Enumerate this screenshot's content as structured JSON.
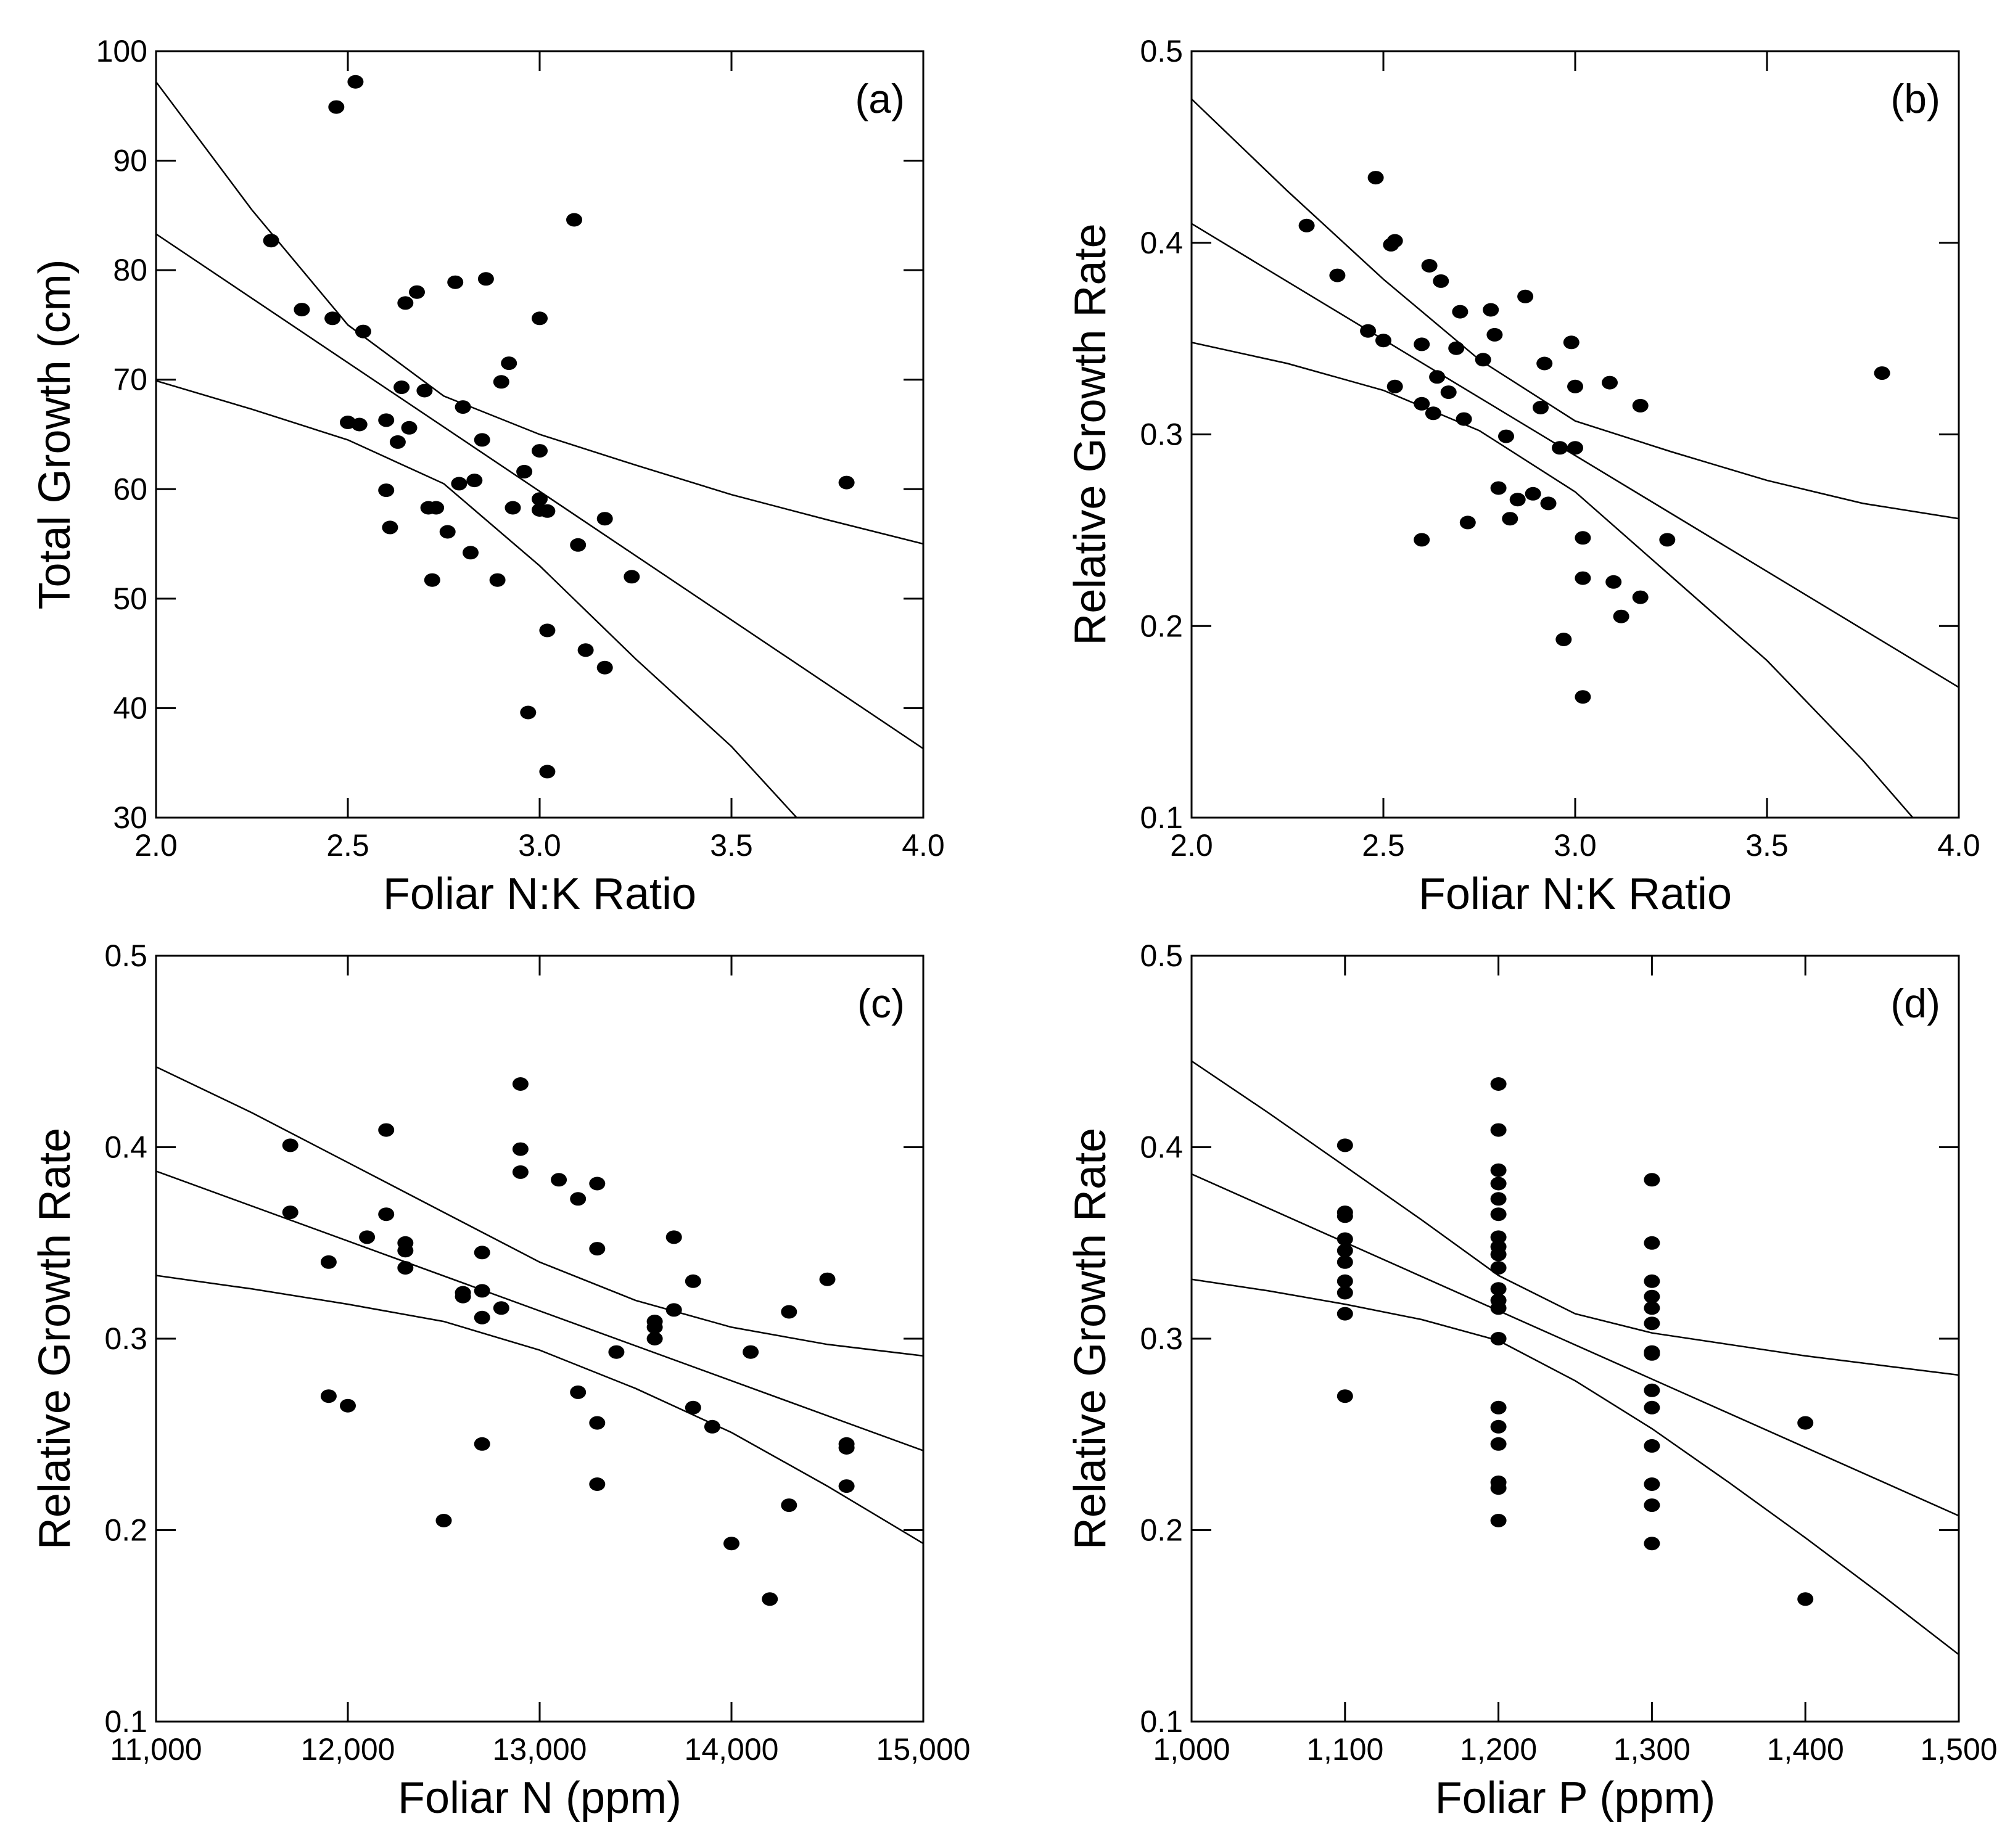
{
  "chart_data": [
    {
      "type": "scatter",
      "panel_tag": "(a)",
      "xlabel": "Foliar N:K Ratio",
      "ylabel": "Total Growth (cm)",
      "xlim": [
        2.0,
        4.0
      ],
      "ylim": [
        30,
        100
      ],
      "xticks": [
        2.0,
        2.5,
        3.0,
        3.5,
        4.0
      ],
      "xtick_labels": [
        "2.0",
        "2.5",
        "3.0",
        "3.5",
        "4.0"
      ],
      "yticks": [
        30,
        40,
        50,
        60,
        70,
        80,
        90,
        100
      ],
      "ytick_labels": [
        "30",
        "40",
        "50",
        "60",
        "70",
        "80",
        "90",
        "100"
      ],
      "points": [
        [
          2.3,
          82.7
        ],
        [
          2.38,
          76.4
        ],
        [
          2.46,
          75.6
        ],
        [
          2.47,
          94.9
        ],
        [
          2.5,
          66.1
        ],
        [
          2.52,
          97.2
        ],
        [
          2.53,
          65.9
        ],
        [
          2.54,
          74.4
        ],
        [
          2.6,
          66.3
        ],
        [
          2.6,
          59.9
        ],
        [
          2.61,
          56.5
        ],
        [
          2.63,
          64.3
        ],
        [
          2.64,
          69.3
        ],
        [
          2.65,
          77.0
        ],
        [
          2.66,
          65.6
        ],
        [
          2.68,
          78.0
        ],
        [
          2.7,
          69.0
        ],
        [
          2.71,
          58.3
        ],
        [
          2.72,
          51.7
        ],
        [
          2.73,
          58.3
        ],
        [
          2.76,
          56.1
        ],
        [
          2.78,
          78.9
        ],
        [
          2.79,
          60.5
        ],
        [
          2.8,
          67.5
        ],
        [
          2.82,
          54.2
        ],
        [
          2.83,
          60.8
        ],
        [
          2.85,
          64.5
        ],
        [
          2.86,
          79.2
        ],
        [
          2.89,
          51.7
        ],
        [
          2.9,
          69.8
        ],
        [
          2.92,
          71.5
        ],
        [
          2.93,
          58.3
        ],
        [
          2.96,
          61.6
        ],
        [
          2.97,
          39.6
        ],
        [
          3.0,
          75.6
        ],
        [
          3.0,
          63.5
        ],
        [
          3.0,
          59.1
        ],
        [
          3.0,
          58.1
        ],
        [
          3.02,
          58.0
        ],
        [
          3.02,
          47.1
        ],
        [
          3.02,
          34.2
        ],
        [
          3.09,
          84.6
        ],
        [
          3.1,
          54.9
        ],
        [
          3.12,
          45.3
        ],
        [
          3.17,
          43.7
        ],
        [
          3.17,
          57.3
        ],
        [
          3.24,
          52.0
        ],
        [
          3.8,
          60.6
        ]
      ],
      "fit_line": {
        "intercept": 130.3,
        "slope": -23.5
      },
      "ci_upper": [
        [
          2.0,
          97.2
        ],
        [
          2.25,
          85.5
        ],
        [
          2.5,
          75.0
        ],
        [
          2.75,
          68.5
        ],
        [
          3.0,
          65.0
        ],
        [
          3.25,
          62.2
        ],
        [
          3.5,
          59.5
        ],
        [
          3.75,
          57.2
        ],
        [
          4.0,
          55.0
        ]
      ],
      "ci_lower": [
        [
          2.0,
          69.9
        ],
        [
          2.25,
          67.3
        ],
        [
          2.5,
          64.5
        ],
        [
          2.75,
          60.5
        ],
        [
          3.0,
          53.0
        ],
        [
          3.25,
          44.5
        ],
        [
          3.5,
          36.5
        ],
        [
          3.67,
          30.0
        ]
      ]
    },
    {
      "type": "scatter",
      "panel_tag": "(b)",
      "xlabel": "Foliar N:K Ratio",
      "ylabel": "Relative Growth Rate",
      "xlim": [
        2.0,
        4.0
      ],
      "ylim": [
        0.1,
        0.5
      ],
      "xticks": [
        2.0,
        2.5,
        3.0,
        3.5,
        4.0
      ],
      "xtick_labels": [
        "2.0",
        "2.5",
        "3.0",
        "3.5",
        "4.0"
      ],
      "yticks": [
        0.1,
        0.2,
        0.3,
        0.4,
        0.5
      ],
      "ytick_labels": [
        "0.1",
        "0.2",
        "0.3",
        "0.4",
        "0.5"
      ],
      "points": [
        [
          2.3,
          0.409
        ],
        [
          2.38,
          0.383
        ],
        [
          2.46,
          0.354
        ],
        [
          2.48,
          0.434
        ],
        [
          2.5,
          0.349
        ],
        [
          2.52,
          0.399
        ],
        [
          2.53,
          0.401
        ],
        [
          2.53,
          0.325
        ],
        [
          2.6,
          0.347
        ],
        [
          2.6,
          0.316
        ],
        [
          2.6,
          0.245
        ],
        [
          2.62,
          0.388
        ],
        [
          2.63,
          0.311
        ],
        [
          2.64,
          0.33
        ],
        [
          2.65,
          0.38
        ],
        [
          2.67,
          0.322
        ],
        [
          2.69,
          0.345
        ],
        [
          2.7,
          0.364
        ],
        [
          2.71,
          0.308
        ],
        [
          2.72,
          0.254
        ],
        [
          2.76,
          0.339
        ],
        [
          2.78,
          0.365
        ],
        [
          2.79,
          0.352
        ],
        [
          2.8,
          0.272
        ],
        [
          2.82,
          0.299
        ],
        [
          2.83,
          0.256
        ],
        [
          2.85,
          0.266
        ],
        [
          2.87,
          0.372
        ],
        [
          2.89,
          0.269
        ],
        [
          2.91,
          0.314
        ],
        [
          2.92,
          0.337
        ],
        [
          2.93,
          0.264
        ],
        [
          2.96,
          0.293
        ],
        [
          2.97,
          0.193
        ],
        [
          2.99,
          0.348
        ],
        [
          3.0,
          0.325
        ],
        [
          3.0,
          0.293
        ],
        [
          3.02,
          0.246
        ],
        [
          3.02,
          0.225
        ],
        [
          3.02,
          0.163
        ],
        [
          3.09,
          0.327
        ],
        [
          3.1,
          0.223
        ],
        [
          3.12,
          0.205
        ],
        [
          3.17,
          0.215
        ],
        [
          3.17,
          0.315
        ],
        [
          3.24,
          0.245
        ],
        [
          3.8,
          0.332
        ]
      ],
      "fit_line": {
        "intercept": 0.652,
        "slope": -0.121
      },
      "ci_upper": [
        [
          2.0,
          0.475
        ],
        [
          2.25,
          0.427
        ],
        [
          2.5,
          0.381
        ],
        [
          2.75,
          0.339
        ],
        [
          3.0,
          0.307
        ],
        [
          3.25,
          0.291
        ],
        [
          3.5,
          0.276
        ],
        [
          3.75,
          0.264
        ],
        [
          4.0,
          0.256
        ]
      ],
      "ci_lower": [
        [
          2.0,
          0.348
        ],
        [
          2.25,
          0.337
        ],
        [
          2.5,
          0.323
        ],
        [
          2.75,
          0.302
        ],
        [
          3.0,
          0.27
        ],
        [
          3.25,
          0.226
        ],
        [
          3.5,
          0.182
        ],
        [
          3.75,
          0.13
        ],
        [
          3.88,
          0.1
        ]
      ]
    },
    {
      "type": "scatter",
      "panel_tag": "(c)",
      "xlabel": "Foliar N (ppm)",
      "ylabel": "Relative Growth Rate",
      "xlim": [
        11000,
        15000
      ],
      "ylim": [
        0.1,
        0.5
      ],
      "xticks": [
        11000,
        12000,
        13000,
        14000,
        15000
      ],
      "xtick_labels": [
        "11,000",
        "12,000",
        "13,000",
        "14,000",
        "15,000"
      ],
      "yticks": [
        0.1,
        0.2,
        0.3,
        0.4,
        0.5
      ],
      "ytick_labels": [
        "0.1",
        "0.2",
        "0.3",
        "0.4",
        "0.5"
      ],
      "points": [
        [
          11700,
          0.401
        ],
        [
          11700,
          0.366
        ],
        [
          11900,
          0.34
        ],
        [
          11900,
          0.27
        ],
        [
          12000,
          0.265
        ],
        [
          12100,
          0.353
        ],
        [
          12200,
          0.409
        ],
        [
          12200,
          0.365
        ],
        [
          12300,
          0.35
        ],
        [
          12300,
          0.346
        ],
        [
          12300,
          0.337
        ],
        [
          12500,
          0.205
        ],
        [
          12600,
          0.324
        ],
        [
          12600,
          0.322
        ],
        [
          12700,
          0.345
        ],
        [
          12700,
          0.325
        ],
        [
          12700,
          0.311
        ],
        [
          12700,
          0.245
        ],
        [
          12800,
          0.316
        ],
        [
          12900,
          0.433
        ],
        [
          12900,
          0.399
        ],
        [
          12900,
          0.387
        ],
        [
          13100,
          0.383
        ],
        [
          13200,
          0.373
        ],
        [
          13200,
          0.272
        ],
        [
          13300,
          0.381
        ],
        [
          13300,
          0.347
        ],
        [
          13300,
          0.256
        ],
        [
          13300,
          0.224
        ],
        [
          13400,
          0.293
        ],
        [
          13600,
          0.309
        ],
        [
          13600,
          0.306
        ],
        [
          13600,
          0.3
        ],
        [
          13700,
          0.353
        ],
        [
          13700,
          0.315
        ],
        [
          13800,
          0.33
        ],
        [
          13800,
          0.264
        ],
        [
          13900,
          0.254
        ],
        [
          14000,
          0.193
        ],
        [
          14100,
          0.293
        ],
        [
          14200,
          0.164
        ],
        [
          14300,
          0.314
        ],
        [
          14300,
          0.213
        ],
        [
          14500,
          0.331
        ],
        [
          14600,
          0.245
        ],
        [
          14600,
          0.243
        ],
        [
          14600,
          0.223
        ]
      ],
      "fit_line": {
        "intercept": 0.789,
        "slope": -3.65e-05
      },
      "ci_upper": [
        [
          11000,
          0.442
        ],
        [
          11500,
          0.418
        ],
        [
          12000,
          0.392
        ],
        [
          12500,
          0.366
        ],
        [
          13000,
          0.34
        ],
        [
          13500,
          0.32
        ],
        [
          14000,
          0.306
        ],
        [
          14500,
          0.297
        ],
        [
          15000,
          0.291
        ]
      ],
      "ci_lower": [
        [
          11000,
          0.333
        ],
        [
          11500,
          0.326
        ],
        [
          12000,
          0.318
        ],
        [
          12500,
          0.309
        ],
        [
          13000,
          0.294
        ],
        [
          13500,
          0.274
        ],
        [
          14000,
          0.251
        ],
        [
          14500,
          0.223
        ],
        [
          15000,
          0.193
        ]
      ]
    },
    {
      "type": "scatter",
      "panel_tag": "(d)",
      "xlabel": "Foliar P (ppm)",
      "ylabel": "Relative Growth Rate",
      "xlim": [
        1000,
        1500
      ],
      "ylim": [
        0.1,
        0.5
      ],
      "xticks": [
        1000,
        1100,
        1200,
        1300,
        1400,
        1500
      ],
      "xtick_labels": [
        "1,000",
        "1,100",
        "1,200",
        "1,300",
        "1,400",
        "1,500"
      ],
      "yticks": [
        0.1,
        0.2,
        0.3,
        0.4,
        0.5
      ],
      "ytick_labels": [
        "0.1",
        "0.2",
        "0.3",
        "0.4",
        "0.5"
      ],
      "points": [
        [
          1100,
          0.401
        ],
        [
          1100,
          0.366
        ],
        [
          1100,
          0.364
        ],
        [
          1100,
          0.352
        ],
        [
          1100,
          0.346
        ],
        [
          1100,
          0.34
        ],
        [
          1100,
          0.33
        ],
        [
          1100,
          0.324
        ],
        [
          1100,
          0.313
        ],
        [
          1100,
          0.27
        ],
        [
          1200,
          0.433
        ],
        [
          1200,
          0.409
        ],
        [
          1200,
          0.388
        ],
        [
          1200,
          0.381
        ],
        [
          1200,
          0.373
        ],
        [
          1200,
          0.365
        ],
        [
          1200,
          0.353
        ],
        [
          1200,
          0.348
        ],
        [
          1200,
          0.344
        ],
        [
          1200,
          0.337
        ],
        [
          1200,
          0.326
        ],
        [
          1200,
          0.32
        ],
        [
          1200,
          0.316
        ],
        [
          1200,
          0.3
        ],
        [
          1200,
          0.264
        ],
        [
          1200,
          0.254
        ],
        [
          1200,
          0.245
        ],
        [
          1200,
          0.225
        ],
        [
          1200,
          0.222
        ],
        [
          1200,
          0.205
        ],
        [
          1300,
          0.383
        ],
        [
          1300,
          0.35
        ],
        [
          1300,
          0.33
        ],
        [
          1300,
          0.322
        ],
        [
          1300,
          0.316
        ],
        [
          1300,
          0.308
        ],
        [
          1300,
          0.293
        ],
        [
          1300,
          0.292
        ],
        [
          1300,
          0.273
        ],
        [
          1300,
          0.264
        ],
        [
          1300,
          0.244
        ],
        [
          1300,
          0.224
        ],
        [
          1300,
          0.213
        ],
        [
          1300,
          0.193
        ],
        [
          1400,
          0.256
        ],
        [
          1400,
          0.164
        ]
      ],
      "fit_line": {
        "intercept": 0.743,
        "slope": -0.000357
      },
      "ci_upper": [
        [
          1000,
          0.445
        ],
        [
          1050,
          0.418
        ],
        [
          1100,
          0.39
        ],
        [
          1150,
          0.362
        ],
        [
          1200,
          0.333
        ],
        [
          1250,
          0.313
        ],
        [
          1300,
          0.303
        ],
        [
          1350,
          0.297
        ],
        [
          1400,
          0.291
        ],
        [
          1450,
          0.286
        ],
        [
          1500,
          0.281
        ]
      ],
      "ci_lower": [
        [
          1000,
          0.331
        ],
        [
          1050,
          0.325
        ],
        [
          1100,
          0.318
        ],
        [
          1150,
          0.31
        ],
        [
          1200,
          0.299
        ],
        [
          1250,
          0.278
        ],
        [
          1300,
          0.253
        ],
        [
          1350,
          0.225
        ],
        [
          1400,
          0.196
        ],
        [
          1450,
          0.166
        ],
        [
          1500,
          0.135
        ]
      ]
    }
  ]
}
